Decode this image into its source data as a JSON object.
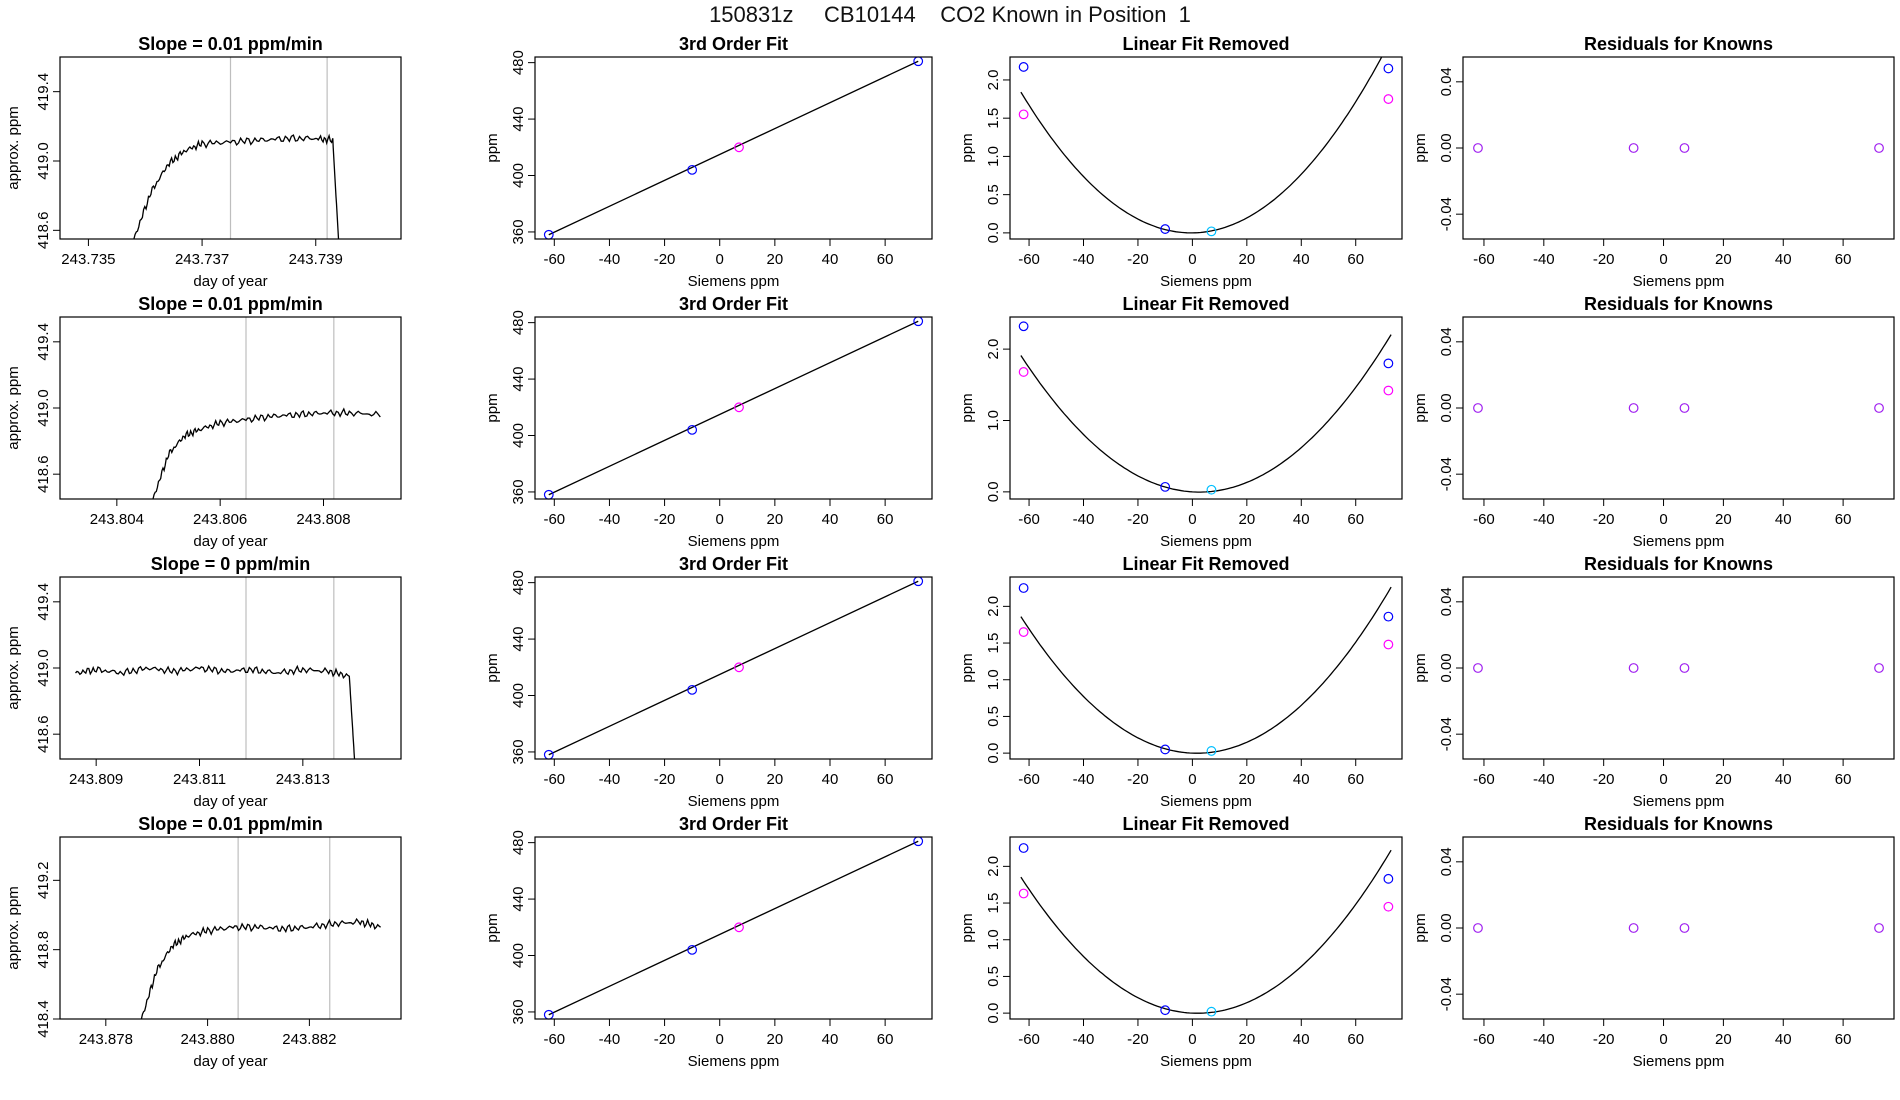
{
  "page_title": "150831z     CB10144    CO2 Known in Position  1",
  "colors": {
    "line": "#000000",
    "frame": "#000000",
    "vline": "#bebebe",
    "pt_blue": "#0000ff",
    "pt_magenta": "#ff00ff",
    "pt_cyan": "#00bfff",
    "pt_purple": "#a020f0",
    "red_mark": "#ff0000"
  },
  "chart_data": [
    {
      "type": "line",
      "row": 1,
      "kind": "timeseries",
      "title": "Slope =  0.01  ppm/min",
      "xlabel": "day of year",
      "ylabel": "approx. ppm",
      "xlim": [
        243.7345,
        243.7405
      ],
      "ylim": [
        418.55,
        419.6
      ],
      "xticks": [
        243.735,
        243.737,
        243.739
      ],
      "xtick_labels": [
        "243.735",
        "243.737",
        "243.739"
      ],
      "yticks": [
        418.6,
        419.0,
        419.4
      ],
      "ytick_labels": [
        "418.6",
        "419.0",
        "419.4"
      ],
      "vlines": [
        243.7375,
        243.7392
      ],
      "series": [
        {
          "x": [
            243.7358,
            243.7361,
            243.7364,
            243.7367,
            243.737,
            243.7375,
            243.738,
            243.7385,
            243.739,
            243.7393,
            243.7394
          ],
          "y": [
            418.55,
            418.82,
            418.98,
            419.06,
            419.1,
            419.11,
            419.12,
            419.13,
            419.13,
            419.12,
            418.55
          ]
        }
      ]
    },
    {
      "type": "scatter",
      "row": 1,
      "kind": "fit3",
      "title": "3rd Order Fit",
      "xlabel": "Siemens ppm",
      "ylabel": "ppm",
      "xlim": [
        -67,
        77
      ],
      "ylim": [
        355,
        484
      ],
      "xticks": [
        -60,
        -40,
        -20,
        0,
        20,
        40,
        60
      ],
      "xtick_labels": [
        "-60",
        "-40",
        "-20",
        "0",
        "20",
        "40",
        "60"
      ],
      "yticks": [
        360,
        400,
        440,
        480
      ],
      "ytick_labels": [
        "360",
        "400",
        "440",
        "480"
      ],
      "line": {
        "x": [
          -62,
          72
        ],
        "y": [
          358,
          481
        ]
      },
      "points": [
        {
          "x": -62,
          "y": 358,
          "color": "pt_blue"
        },
        {
          "x": -10,
          "y": 404,
          "color": "pt_blue"
        },
        {
          "x": 7,
          "y": 420,
          "color": "pt_magenta"
        },
        {
          "x": 72,
          "y": 481,
          "color": "pt_blue"
        }
      ]
    },
    {
      "type": "scatter",
      "row": 1,
      "kind": "linfit",
      "title": "Linear Fit Removed",
      "xlabel": "Siemens ppm",
      "ylabel": "ppm",
      "xlim": [
        -67,
        77
      ],
      "ylim": [
        -0.08,
        2.3
      ],
      "xticks": [
        -60,
        -40,
        -20,
        0,
        20,
        40,
        60
      ],
      "xtick_labels": [
        "-60",
        "-40",
        "-20",
        "0",
        "20",
        "40",
        "60"
      ],
      "yticks": [
        0.0,
        0.5,
        1.0,
        1.5,
        2.0
      ],
      "ytick_labels": [
        "0.0",
        "0.5",
        "1.0",
        "1.5",
        "2.0"
      ],
      "curve_coeff": [
        0.00047,
        0.00038
      ],
      "points": [
        {
          "x": -62,
          "y": 2.17,
          "color": "pt_blue"
        },
        {
          "x": -62,
          "y": 1.55,
          "color": "pt_magenta"
        },
        {
          "x": -10,
          "y": 0.05,
          "color": "pt_blue"
        },
        {
          "x": 7,
          "y": 0.02,
          "color": "pt_cyan"
        },
        {
          "x": 72,
          "y": 2.15,
          "color": "pt_blue"
        },
        {
          "x": 72,
          "y": 1.75,
          "color": "pt_magenta"
        }
      ]
    },
    {
      "type": "scatter",
      "row": 1,
      "kind": "resid",
      "title": "Residuals for Knowns",
      "xlabel": "Siemens ppm",
      "ylabel": "ppm",
      "xlim": [
        -67,
        77
      ],
      "ylim": [
        -0.055,
        0.055
      ],
      "xticks": [
        -60,
        -40,
        -20,
        0,
        20,
        40,
        60
      ],
      "xtick_labels": [
        "-60",
        "-40",
        "-20",
        "0",
        "20",
        "40",
        "60"
      ],
      "yticks": [
        -0.04,
        0.0,
        0.04
      ],
      "ytick_labels": [
        "-0.04",
        "0.00",
        "0.04"
      ],
      "points": [
        {
          "x": -62,
          "y": 0,
          "color": "pt_purple"
        },
        {
          "x": -10,
          "y": 0,
          "color": "pt_purple"
        },
        {
          "x": 7,
          "y": 0,
          "color": "pt_purple"
        },
        {
          "x": 72,
          "y": 0,
          "color": "pt_purple"
        }
      ]
    },
    {
      "type": "line",
      "row": 2,
      "kind": "timeseries",
      "title": "Slope =  0.01  ppm/min",
      "xlabel": "day of year",
      "ylabel": "approx. ppm",
      "xlim": [
        243.8029,
        243.8095
      ],
      "ylim": [
        418.45,
        419.55
      ],
      "xticks": [
        243.804,
        243.806,
        243.808
      ],
      "xtick_labels": [
        "243.804",
        "243.806",
        "243.808"
      ],
      "yticks": [
        418.6,
        419.0,
        419.4
      ],
      "ytick_labels": [
        "418.6",
        "419.0",
        "419.4"
      ],
      "vlines": [
        243.8065,
        243.8082
      ],
      "series": [
        {
          "x": [
            243.8047,
            243.805,
            243.8053,
            243.8056,
            243.806,
            243.8065,
            243.807,
            243.8075,
            243.808,
            243.8085,
            243.8091
          ],
          "y": [
            418.45,
            418.72,
            418.83,
            418.87,
            418.91,
            418.93,
            418.95,
            418.96,
            418.97,
            418.97,
            418.96
          ]
        }
      ]
    },
    {
      "type": "scatter",
      "row": 2,
      "kind": "fit3",
      "title": "3rd Order Fit",
      "xlabel": "Siemens ppm",
      "ylabel": "ppm",
      "xlim": [
        -67,
        77
      ],
      "ylim": [
        355,
        484
      ],
      "xticks": [
        -60,
        -40,
        -20,
        0,
        20,
        40,
        60
      ],
      "xtick_labels": [
        "-60",
        "-40",
        "-20",
        "0",
        "20",
        "40",
        "60"
      ],
      "yticks": [
        360,
        400,
        440,
        480
      ],
      "ytick_labels": [
        "360",
        "400",
        "440",
        "480"
      ],
      "line": {
        "x": [
          -62,
          72
        ],
        "y": [
          358,
          481
        ]
      },
      "points": [
        {
          "x": -62,
          "y": 358,
          "color": "pt_blue"
        },
        {
          "x": -10,
          "y": 404,
          "color": "pt_blue"
        },
        {
          "x": 7,
          "y": 420,
          "color": "pt_magenta"
        },
        {
          "x": 72,
          "y": 481,
          "color": "pt_blue"
        }
      ]
    },
    {
      "type": "scatter",
      "row": 2,
      "kind": "linfit",
      "title": "Linear Fit Removed",
      "xlabel": "Siemens ppm",
      "ylabel": "ppm",
      "xlim": [
        -67,
        77
      ],
      "ylim": [
        -0.1,
        2.45
      ],
      "xticks": [
        -60,
        -40,
        -20,
        0,
        20,
        40,
        60
      ],
      "xtick_labels": [
        "-60",
        "-40",
        "-20",
        "0",
        "20",
        "40",
        "60"
      ],
      "yticks": [
        0.0,
        1.0,
        2.0
      ],
      "ytick_labels": [
        "0.0",
        "1.0",
        "2.0"
      ],
      "curve_coeff": [
        0.000445,
        -0.0023
      ],
      "points": [
        {
          "x": -62,
          "y": 2.32,
          "color": "pt_blue"
        },
        {
          "x": -62,
          "y": 1.68,
          "color": "pt_magenta"
        },
        {
          "x": -10,
          "y": 0.07,
          "color": "pt_blue"
        },
        {
          "x": 7,
          "y": 0.03,
          "color": "pt_cyan"
        },
        {
          "x": 72,
          "y": 1.8,
          "color": "pt_blue"
        },
        {
          "x": 72,
          "y": 1.42,
          "color": "pt_magenta"
        }
      ]
    },
    {
      "type": "scatter",
      "row": 2,
      "kind": "resid",
      "title": "Residuals for Knowns",
      "xlabel": "Siemens ppm",
      "ylabel": "ppm",
      "xlim": [
        -67,
        77
      ],
      "ylim": [
        -0.055,
        0.055
      ],
      "xticks": [
        -60,
        -40,
        -20,
        0,
        20,
        40,
        60
      ],
      "xtick_labels": [
        "-60",
        "-40",
        "-20",
        "0",
        "20",
        "40",
        "60"
      ],
      "yticks": [
        -0.04,
        0.0,
        0.04
      ],
      "ytick_labels": [
        "-0.04",
        "0.00",
        "0.04"
      ],
      "points": [
        {
          "x": -62,
          "y": 0,
          "color": "pt_purple"
        },
        {
          "x": -10,
          "y": 0,
          "color": "pt_purple"
        },
        {
          "x": 7,
          "y": 0,
          "color": "pt_purple"
        },
        {
          "x": 72,
          "y": 0,
          "color": "pt_purple"
        }
      ]
    },
    {
      "type": "line",
      "row": 3,
      "kind": "timeseries",
      "title": "Slope =  0  ppm/min",
      "xlabel": "day of year",
      "ylabel": "approx. ppm",
      "xlim": [
        243.8083,
        243.8149
      ],
      "ylim": [
        418.45,
        419.55
      ],
      "xticks": [
        243.809,
        243.811,
        243.813
      ],
      "xtick_labels": [
        "243.809",
        "243.811",
        "243.813"
      ],
      "yticks": [
        418.6,
        419.0,
        419.4
      ],
      "ytick_labels": [
        "418.6",
        "419.0",
        "419.4"
      ],
      "vlines": [
        243.8119,
        243.8136
      ],
      "series": [
        {
          "x": [
            243.8086,
            243.809,
            243.8095,
            243.81,
            243.8105,
            243.811,
            243.8115,
            243.812,
            243.8125,
            243.813,
            243.8135,
            243.8139,
            243.814
          ],
          "y": [
            418.97,
            418.99,
            418.97,
            419.0,
            418.98,
            419.0,
            418.98,
            418.99,
            418.97,
            418.99,
            418.98,
            418.95,
            418.45
          ]
        }
      ]
    },
    {
      "type": "scatter",
      "row": 3,
      "kind": "fit3",
      "title": "3rd Order Fit",
      "xlabel": "Siemens ppm",
      "ylabel": "ppm",
      "xlim": [
        -67,
        77
      ],
      "ylim": [
        355,
        484
      ],
      "xticks": [
        -60,
        -40,
        -20,
        0,
        20,
        40,
        60
      ],
      "xtick_labels": [
        "-60",
        "-40",
        "-20",
        "0",
        "20",
        "40",
        "60"
      ],
      "yticks": [
        360,
        400,
        440,
        480
      ],
      "ytick_labels": [
        "360",
        "400",
        "440",
        "480"
      ],
      "line": {
        "x": [
          -62,
          72
        ],
        "y": [
          358,
          481
        ]
      },
      "points": [
        {
          "x": -62,
          "y": 358,
          "color": "pt_blue"
        },
        {
          "x": -10,
          "y": 404,
          "color": "pt_blue"
        },
        {
          "x": 7,
          "y": 420,
          "color": "pt_magenta"
        },
        {
          "x": 72,
          "y": 481,
          "color": "pt_blue"
        }
      ]
    },
    {
      "type": "scatter",
      "row": 3,
      "kind": "linfit",
      "title": "Linear Fit Removed",
      "xlabel": "Siemens ppm",
      "ylabel": "ppm",
      "xlim": [
        -67,
        77
      ],
      "ylim": [
        -0.08,
        2.4
      ],
      "xticks": [
        -60,
        -40,
        -20,
        0,
        20,
        40,
        60
      ],
      "xtick_labels": [
        "-60",
        "-40",
        "-20",
        "0",
        "20",
        "40",
        "60"
      ],
      "yticks": [
        0.0,
        0.5,
        1.0,
        1.5,
        2.0
      ],
      "ytick_labels": [
        "0.0",
        "0.5",
        "1.0",
        "1.5",
        "2.0"
      ],
      "curve_coeff": [
        0.000445,
        -0.0015
      ],
      "points": [
        {
          "x": -62,
          "y": 2.25,
          "color": "pt_blue"
        },
        {
          "x": -62,
          "y": 1.65,
          "color": "pt_magenta"
        },
        {
          "x": -10,
          "y": 0.05,
          "color": "pt_blue"
        },
        {
          "x": 7,
          "y": 0.03,
          "color": "pt_cyan"
        },
        {
          "x": 72,
          "y": 1.86,
          "color": "pt_blue"
        },
        {
          "x": 72,
          "y": 1.48,
          "color": "pt_magenta"
        }
      ]
    },
    {
      "type": "scatter",
      "row": 3,
      "kind": "resid",
      "title": "Residuals for Knowns",
      "xlabel": "Siemens ppm",
      "ylabel": "ppm",
      "xlim": [
        -67,
        77
      ],
      "ylim": [
        -0.055,
        0.055
      ],
      "xticks": [
        -60,
        -40,
        -20,
        0,
        20,
        40,
        60
      ],
      "xtick_labels": [
        "-60",
        "-40",
        "-20",
        "0",
        "20",
        "40",
        "60"
      ],
      "yticks": [
        -0.04,
        0.0,
        0.04
      ],
      "ytick_labels": [
        "-0.04",
        "0.00",
        "0.04"
      ],
      "points": [
        {
          "x": -62,
          "y": 0,
          "color": "pt_purple"
        },
        {
          "x": -10,
          "y": 0,
          "color": "pt_purple"
        },
        {
          "x": 7,
          "y": 0,
          "color": "pt_purple"
        },
        {
          "x": 72,
          "y": 0,
          "color": "pt_purple"
        }
      ]
    },
    {
      "type": "line",
      "row": 4,
      "kind": "timeseries",
      "title": "Slope =  0.01  ppm/min",
      "xlabel": "day of year",
      "ylabel": "approx. ppm",
      "xlim": [
        243.8771,
        243.8838
      ],
      "ylim": [
        418.4,
        419.45
      ],
      "xticks": [
        243.878,
        243.88,
        243.882
      ],
      "xtick_labels": [
        "243.878",
        "243.880",
        "243.882"
      ],
      "yticks": [
        418.4,
        418.8,
        419.2
      ],
      "ytick_labels": [
        "418.4",
        "418.8",
        "419.2"
      ],
      "vlines": [
        243.8806,
        243.8824
      ],
      "series": [
        {
          "x": [
            243.8787,
            243.879,
            243.8793,
            243.8796,
            243.88,
            243.8805,
            243.881,
            243.8815,
            243.882,
            243.8825,
            243.883,
            243.8834
          ],
          "y": [
            418.4,
            418.68,
            418.82,
            418.88,
            418.91,
            418.93,
            418.93,
            418.92,
            418.93,
            418.95,
            418.96,
            418.93
          ]
        }
      ]
    },
    {
      "type": "scatter",
      "row": 4,
      "kind": "fit3",
      "title": "3rd Order Fit",
      "xlabel": "Siemens ppm",
      "ylabel": "ppm",
      "xlim": [
        -67,
        77
      ],
      "ylim": [
        355,
        484
      ],
      "xticks": [
        -60,
        -40,
        -20,
        0,
        20,
        40,
        60
      ],
      "xtick_labels": [
        "-60",
        "-40",
        "-20",
        "0",
        "20",
        "40",
        "60"
      ],
      "yticks": [
        360,
        400,
        440,
        480
      ],
      "ytick_labels": [
        "360",
        "400",
        "440",
        "480"
      ],
      "line": {
        "x": [
          -62,
          72
        ],
        "y": [
          358,
          481
        ]
      },
      "points": [
        {
          "x": -62,
          "y": 358,
          "color": "pt_blue"
        },
        {
          "x": -10,
          "y": 404,
          "color": "pt_blue"
        },
        {
          "x": 7,
          "y": 420,
          "color": "pt_magenta"
        },
        {
          "x": 72,
          "y": 481,
          "color": "pt_blue"
        }
      ]
    },
    {
      "type": "scatter",
      "row": 4,
      "kind": "linfit",
      "title": "Linear Fit Removed",
      "xlabel": "Siemens ppm",
      "ylabel": "ppm",
      "xlim": [
        -67,
        77
      ],
      "ylim": [
        -0.08,
        2.4
      ],
      "xticks": [
        -60,
        -40,
        -20,
        0,
        20,
        40,
        60
      ],
      "xtick_labels": [
        "-60",
        "-40",
        "-20",
        "0",
        "20",
        "40",
        "60"
      ],
      "yticks": [
        0.0,
        0.5,
        1.0,
        1.5,
        2.0
      ],
      "ytick_labels": [
        "0.0",
        "0.5",
        "1.0",
        "1.5",
        "2.0"
      ],
      "curve_coeff": [
        0.00044,
        -0.0017
      ],
      "points": [
        {
          "x": -62,
          "y": 2.25,
          "color": "pt_blue"
        },
        {
          "x": -62,
          "y": 1.63,
          "color": "pt_magenta"
        },
        {
          "x": -10,
          "y": 0.04,
          "color": "pt_blue"
        },
        {
          "x": 7,
          "y": 0.02,
          "color": "pt_cyan"
        },
        {
          "x": 72,
          "y": 1.83,
          "color": "pt_blue"
        },
        {
          "x": 72,
          "y": 1.45,
          "color": "pt_magenta"
        }
      ]
    },
    {
      "type": "scatter",
      "row": 4,
      "kind": "resid",
      "title": "Residuals for Knowns",
      "xlabel": "Siemens ppm",
      "ylabel": "ppm",
      "xlim": [
        -67,
        77
      ],
      "ylim": [
        -0.055,
        0.055
      ],
      "xticks": [
        -60,
        -40,
        -20,
        0,
        20,
        40,
        60
      ],
      "xtick_labels": [
        "-60",
        "-40",
        "-20",
        "0",
        "20",
        "40",
        "60"
      ],
      "yticks": [
        -0.04,
        0.0,
        0.04
      ],
      "ytick_labels": [
        "-0.04",
        "0.00",
        "0.04"
      ],
      "points": [
        {
          "x": -62,
          "y": 0,
          "color": "pt_purple"
        },
        {
          "x": -10,
          "y": 0,
          "color": "pt_purple"
        },
        {
          "x": 7,
          "y": 0,
          "color": "pt_purple"
        },
        {
          "x": 72,
          "y": 0,
          "color": "pt_purple"
        }
      ]
    }
  ]
}
